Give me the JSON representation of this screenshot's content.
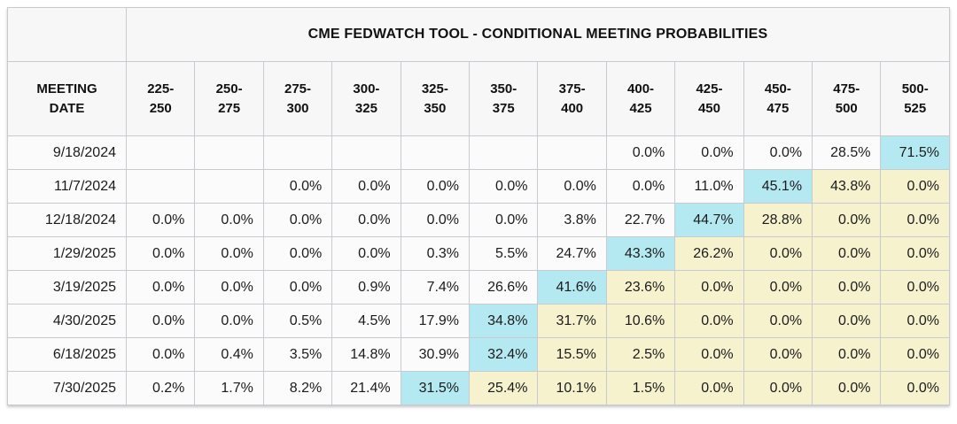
{
  "chart_data": {
    "type": "table",
    "title": "CME FEDWATCH TOOL - CONDITIONAL MEETING PROBABILITIES",
    "row_header_label": "MEETING\nDATE",
    "columns": [
      "225-\n250",
      "250-\n275",
      "275-\n300",
      "300-\n325",
      "325-\n350",
      "350-\n375",
      "375-\n400",
      "400-\n425",
      "425-\n450",
      "450-\n475",
      "475-\n500",
      "500-\n525"
    ],
    "rows": [
      {
        "date": "9/18/2024",
        "values": [
          "",
          "",
          "",
          "",
          "",
          "",
          "",
          "0.0%",
          "0.0%",
          "0.0%",
          "28.5%",
          "71.5%"
        ],
        "highlight": [
          "",
          "",
          "",
          "",
          "",
          "",
          "",
          "",
          "",
          "",
          "",
          "cyan"
        ]
      },
      {
        "date": "11/7/2024",
        "values": [
          "",
          "",
          "0.0%",
          "0.0%",
          "0.0%",
          "0.0%",
          "0.0%",
          "0.0%",
          "11.0%",
          "45.1%",
          "43.8%",
          "0.0%"
        ],
        "highlight": [
          "",
          "",
          "",
          "",
          "",
          "",
          "",
          "",
          "",
          "cyan",
          "yellow",
          "yellow"
        ]
      },
      {
        "date": "12/18/2024",
        "values": [
          "0.0%",
          "0.0%",
          "0.0%",
          "0.0%",
          "0.0%",
          "0.0%",
          "3.8%",
          "22.7%",
          "44.7%",
          "28.8%",
          "0.0%",
          "0.0%"
        ],
        "highlight": [
          "",
          "",
          "",
          "",
          "",
          "",
          "",
          "",
          "cyan",
          "yellow",
          "yellow",
          "yellow"
        ]
      },
      {
        "date": "1/29/2025",
        "values": [
          "0.0%",
          "0.0%",
          "0.0%",
          "0.0%",
          "0.3%",
          "5.5%",
          "24.7%",
          "43.3%",
          "26.2%",
          "0.0%",
          "0.0%",
          "0.0%"
        ],
        "highlight": [
          "",
          "",
          "",
          "",
          "",
          "",
          "",
          "cyan",
          "yellow",
          "yellow",
          "yellow",
          "yellow"
        ]
      },
      {
        "date": "3/19/2025",
        "values": [
          "0.0%",
          "0.0%",
          "0.0%",
          "0.9%",
          "7.4%",
          "26.6%",
          "41.6%",
          "23.6%",
          "0.0%",
          "0.0%",
          "0.0%",
          "0.0%"
        ],
        "highlight": [
          "",
          "",
          "",
          "",
          "",
          "",
          "cyan",
          "yellow",
          "yellow",
          "yellow",
          "yellow",
          "yellow"
        ]
      },
      {
        "date": "4/30/2025",
        "values": [
          "0.0%",
          "0.0%",
          "0.5%",
          "4.5%",
          "17.9%",
          "34.8%",
          "31.7%",
          "10.6%",
          "0.0%",
          "0.0%",
          "0.0%",
          "0.0%"
        ],
        "highlight": [
          "",
          "",
          "",
          "",
          "",
          "cyan",
          "yellow",
          "yellow",
          "yellow",
          "yellow",
          "yellow",
          "yellow"
        ]
      },
      {
        "date": "6/18/2025",
        "values": [
          "0.0%",
          "0.4%",
          "3.5%",
          "14.8%",
          "30.9%",
          "32.4%",
          "15.5%",
          "2.5%",
          "0.0%",
          "0.0%",
          "0.0%",
          "0.0%"
        ],
        "highlight": [
          "",
          "",
          "",
          "",
          "",
          "cyan",
          "yellow",
          "yellow",
          "yellow",
          "yellow",
          "yellow",
          "yellow"
        ]
      },
      {
        "date": "7/30/2025",
        "values": [
          "0.2%",
          "1.7%",
          "8.2%",
          "21.4%",
          "31.5%",
          "25.4%",
          "10.1%",
          "1.5%",
          "0.0%",
          "0.0%",
          "0.0%",
          "0.0%"
        ],
        "highlight": [
          "",
          "",
          "",
          "",
          "cyan",
          "yellow",
          "yellow",
          "yellow",
          "yellow",
          "yellow",
          "yellow",
          "yellow"
        ]
      }
    ]
  },
  "colors": {
    "highlight_cyan": "#b5e9f2",
    "highlight_yellow": "#f6f2ce",
    "header_bg": "#f7f7f7",
    "cell_bg": "#fbfbfb",
    "border": "#c9c9d2"
  }
}
